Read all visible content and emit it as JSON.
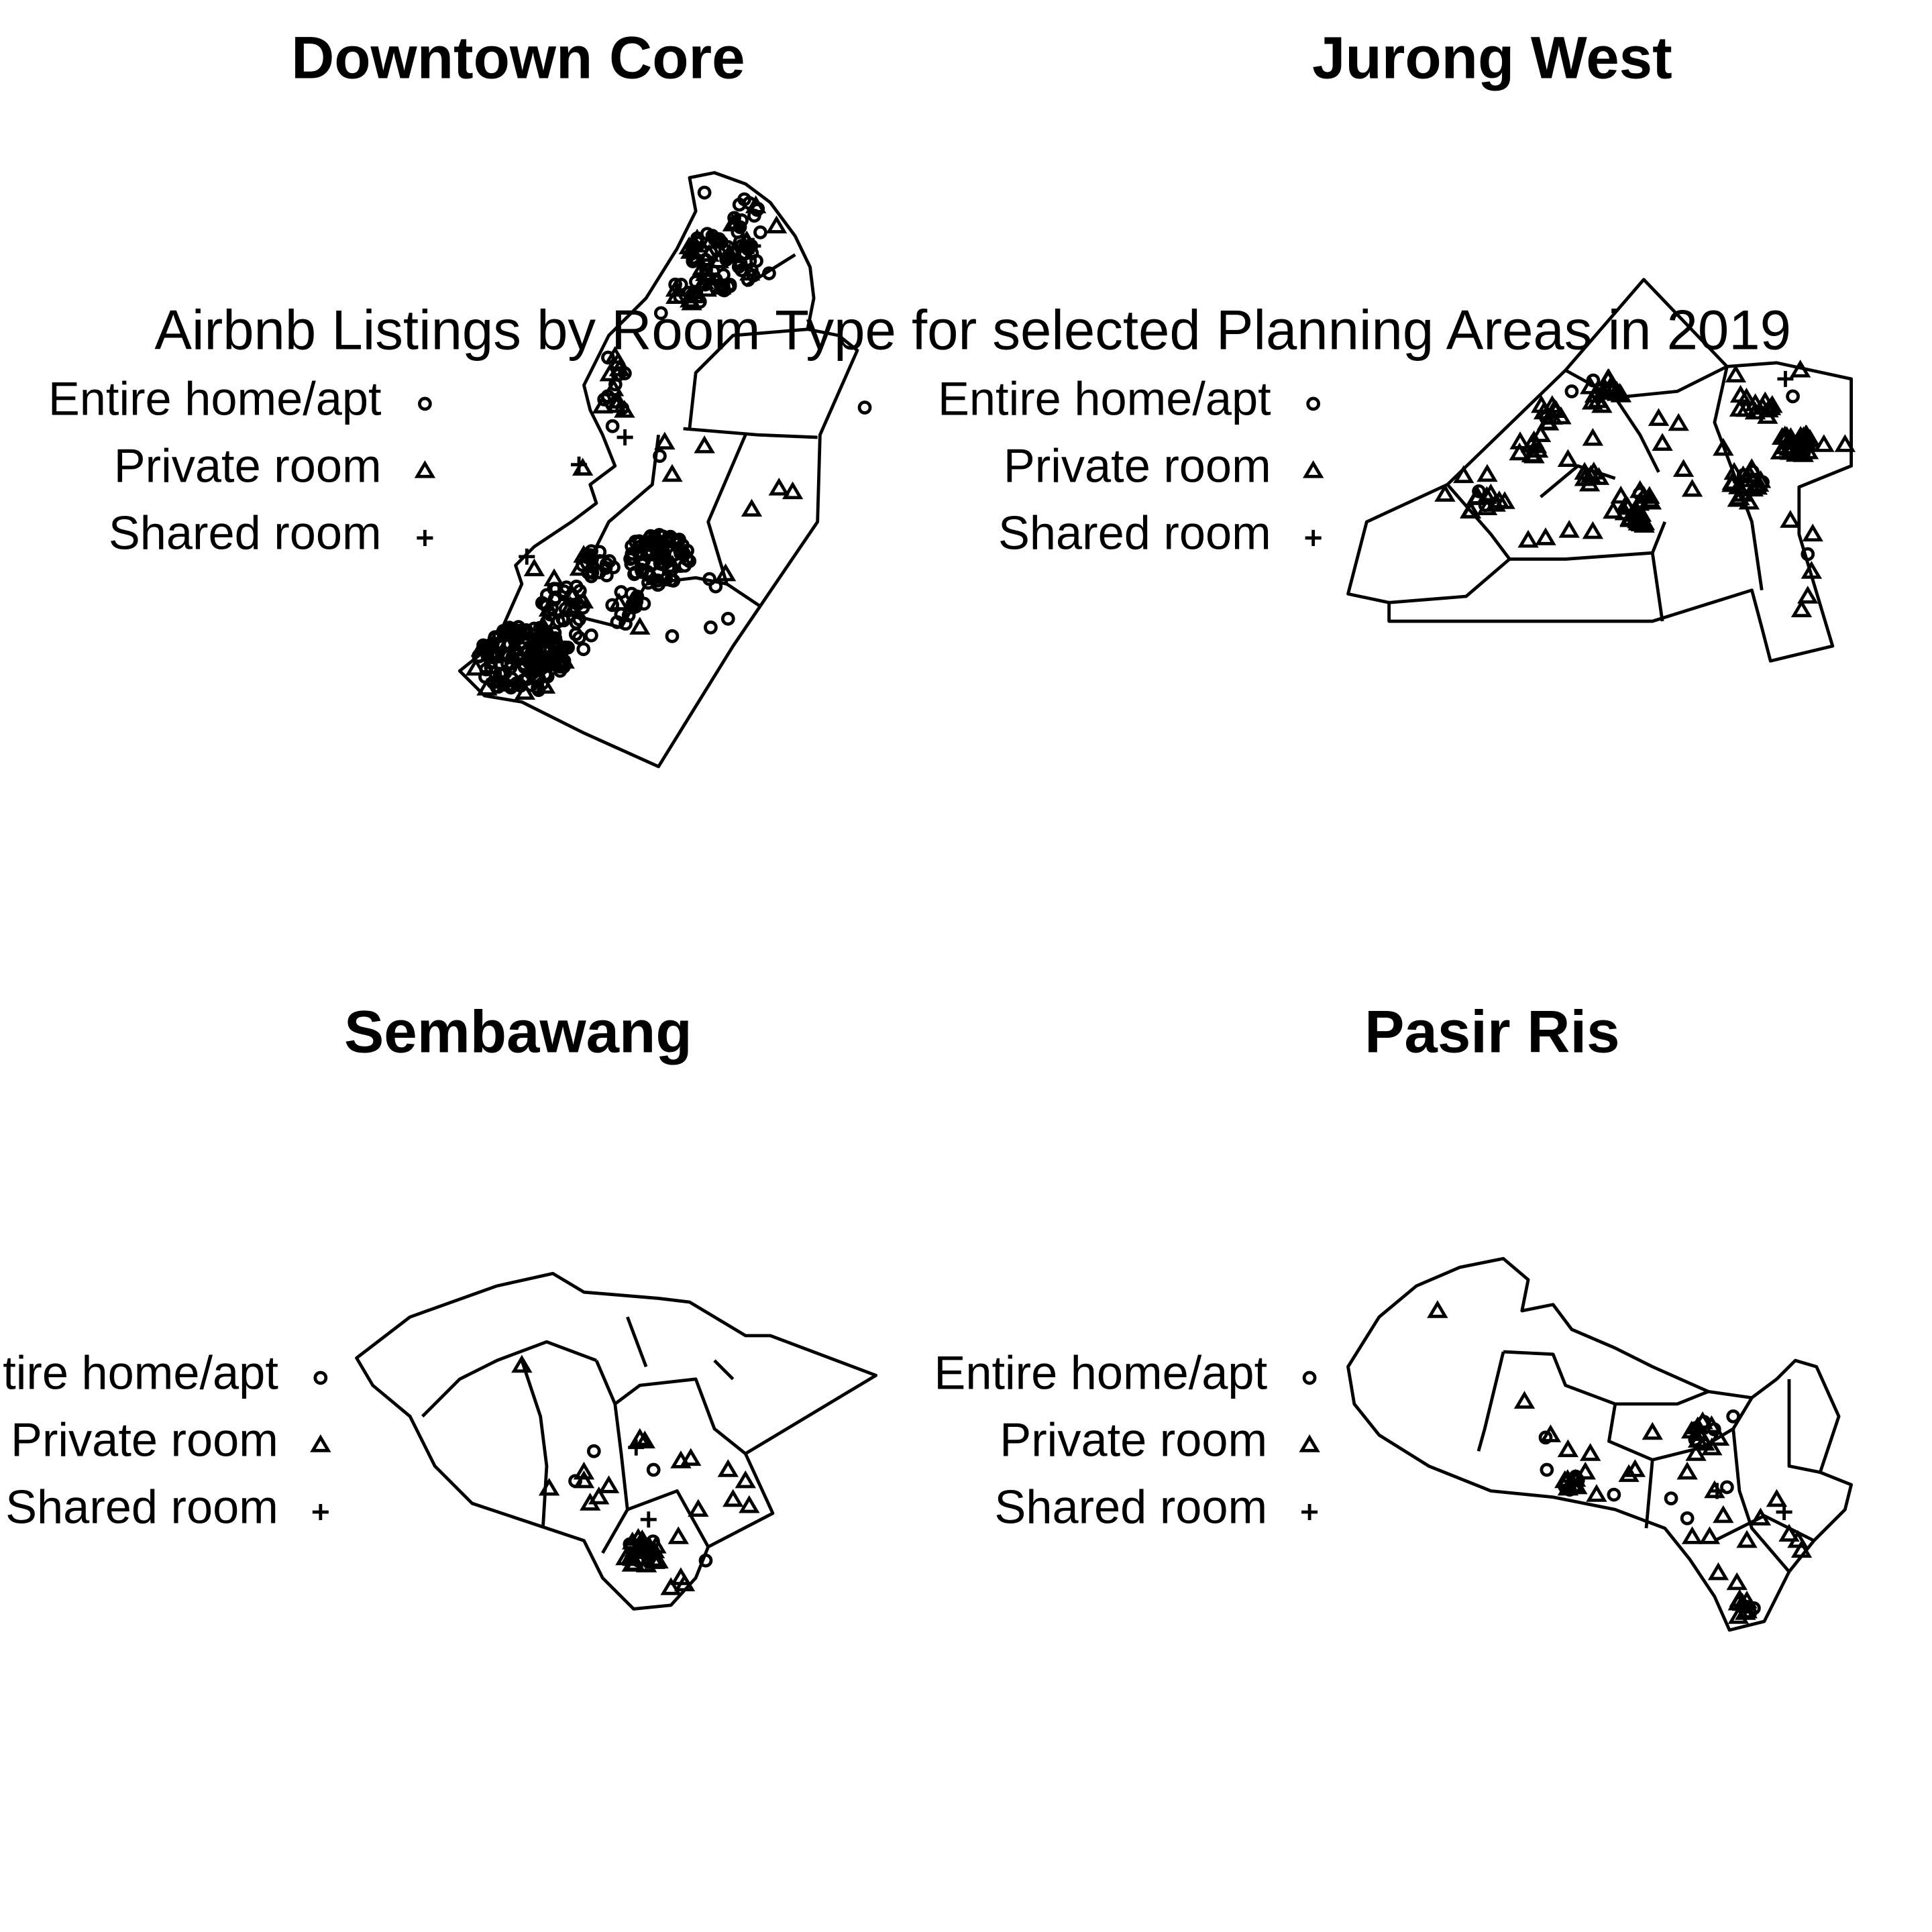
{
  "figure": {
    "title": "Airbnb Listings by Room Type for selected Planning Areas in 2019",
    "legend_labels": [
      "Entire home/apt",
      "Private room",
      "Shared room"
    ]
  },
  "panels": [
    {
      "title": "Downtown Core"
    },
    {
      "title": "Jurong West"
    },
    {
      "title": "Sembawang"
    },
    {
      "title": "Pasir Ris"
    }
  ],
  "chart_data": {
    "type": "map",
    "title": "Airbnb Listings by Room Type for selected Planning Areas in 2019",
    "legend": [
      "Entire home/apt",
      "Private room",
      "Shared room"
    ],
    "symbols": {
      "Entire home/apt": "circle",
      "Private room": "triangle",
      "Shared room": "plus"
    },
    "panels": [
      "Downtown Core",
      "Jurong West",
      "Sembawang",
      "Pasir Ris"
    ]
  }
}
